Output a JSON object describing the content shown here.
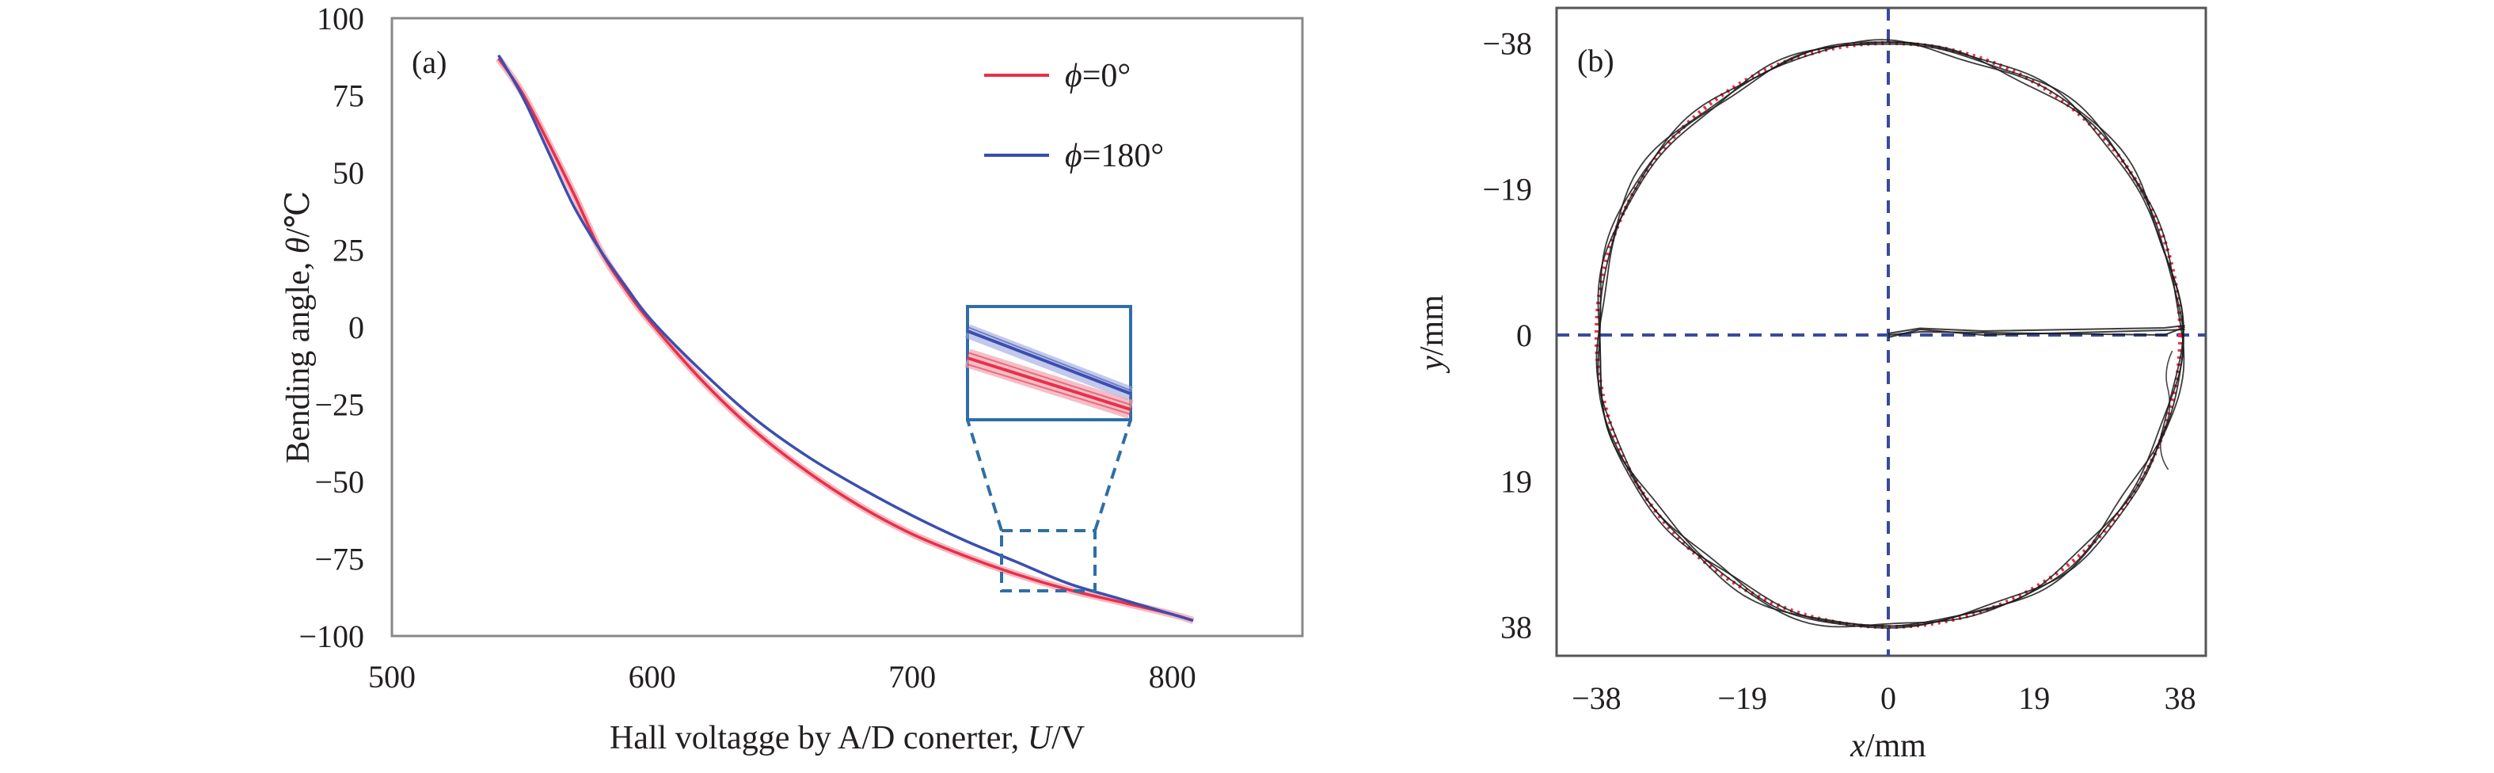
{
  "chart_data": [
    {
      "panel": "(a)",
      "type": "line",
      "xlabel": "Hall voltagge by A/D conerter, U/V",
      "xlabel_prefix": "Hall voltagge by A/D conerter, ",
      "xlabel_var": "U",
      "xlabel_unit": "/V",
      "ylabel": "Bending angle, θ/℃",
      "ylabel_prefix": "Bending angle, ",
      "ylabel_var": "θ",
      "ylabel_unit": "/℃",
      "xlim": [
        500,
        850
      ],
      "ylim": [
        -100,
        100
      ],
      "xticks": [
        500,
        600,
        700,
        800
      ],
      "yticks": [
        100,
        75,
        50,
        25,
        0,
        -25,
        -50,
        -75,
        -100
      ],
      "grid": false,
      "legend_position": "top-right",
      "series": [
        {
          "name": "ϕ=0°",
          "name_var": "ϕ",
          "name_val": "=0°",
          "color": "#e8304a",
          "x": [
            541,
            550,
            560,
            570,
            580,
            590,
            600,
            620,
            640,
            660,
            680,
            700,
            720,
            740,
            760,
            780,
            800,
            808
          ],
          "y": [
            87,
            76,
            60,
            43,
            25,
            12,
            1,
            -18,
            -34,
            -47,
            -58,
            -67,
            -74,
            -80,
            -85,
            -89,
            -93,
            -95
          ]
        },
        {
          "name": "ϕ=180°",
          "name_var": "ϕ",
          "name_val": "=180°",
          "color": "#3b4eb0",
          "x": [
            541,
            550,
            560,
            570,
            580,
            590,
            600,
            620,
            640,
            660,
            680,
            700,
            720,
            740,
            760,
            780,
            800,
            808
          ],
          "y": [
            88,
            75,
            57,
            39,
            25,
            13,
            2,
            -15,
            -30,
            -42,
            -52,
            -61,
            -69,
            -76,
            -83,
            -88,
            -93,
            -95
          ]
        }
      ],
      "annotations": [
        "zoom-inset around U≈725–760, θ≈-65 to -85"
      ]
    },
    {
      "panel": "(b)",
      "type": "scatter",
      "xlabel": "x/mm",
      "xlabel_var": "x",
      "xlabel_unit": "/mm",
      "ylabel": "y/mm",
      "ylabel_var": "y",
      "ylabel_unit": "/mm",
      "xlim": [
        -42,
        42
      ],
      "ylim": [
        -42,
        42
      ],
      "y_axis_inverted": true,
      "xticks": [
        -38,
        -19,
        0,
        19,
        38
      ],
      "yticks": [
        -38,
        -19,
        0,
        19,
        38
      ],
      "grid": false,
      "series": [
        {
          "name": "measured trajectory",
          "color": "#1a1a1a",
          "shape": "circle plus radial segment",
          "radius": 38,
          "center": [
            0,
            0
          ]
        },
        {
          "name": "reference circle",
          "color": "#e8304a",
          "style": "dotted",
          "radius": 38,
          "center": [
            0,
            0
          ]
        }
      ]
    }
  ],
  "colors": {
    "red": "#e8304a",
    "blue": "#3b4eb0",
    "dash": "#3a4a9a",
    "inset": "#2f6ea6",
    "black": "#1a1a1a"
  }
}
